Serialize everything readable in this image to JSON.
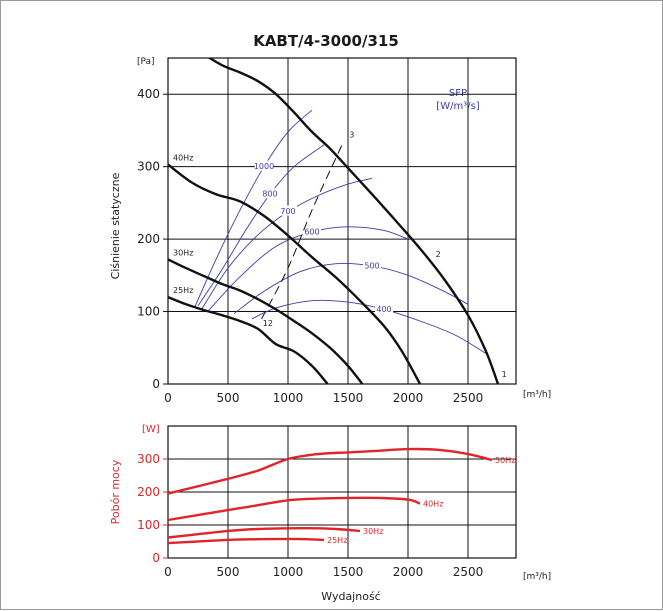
{
  "chart_data": [
    {
      "type": "line",
      "title": "KABT/4-3000/315",
      "ylabel": "Ciśnienie statyczne",
      "yunit": "[Pa]",
      "xunit": "[m³/h]",
      "xlim": [
        0,
        2900
      ],
      "ylim": [
        0,
        450
      ],
      "xticks": [
        0,
        500,
        1000,
        1500,
        2000,
        2500
      ],
      "yticks": [
        0,
        100,
        200,
        300,
        400
      ],
      "grid": true,
      "sfp_label_1": "SFP",
      "sfp_label_2": "[W/m³/s]",
      "fan_curves": [
        {
          "name": "50Hz",
          "x": [
            0,
            150,
            300,
            450,
            600,
            750,
            900,
            1050,
            1200,
            1350,
            1500,
            1700,
            1900,
            2100,
            2300,
            2500,
            2650,
            2750
          ],
          "y": [
            450,
            470,
            455,
            440,
            430,
            418,
            400,
            375,
            348,
            325,
            298,
            262,
            225,
            187,
            145,
            95,
            45,
            0
          ]
        },
        {
          "name": "40Hz",
          "x": [
            0,
            200,
            400,
            600,
            800,
            1000,
            1200,
            1400,
            1600,
            1800,
            1950,
            2100
          ],
          "y": [
            303,
            278,
            262,
            252,
            232,
            205,
            175,
            147,
            115,
            80,
            45,
            0
          ]
        },
        {
          "name": "30Hz",
          "x": [
            0,
            150,
            300,
            450,
            600,
            750,
            900,
            1050,
            1200,
            1350,
            1500,
            1620
          ],
          "y": [
            172,
            160,
            149,
            138,
            129,
            117,
            103,
            87,
            70,
            50,
            25,
            0
          ]
        },
        {
          "name": "25Hz",
          "x": [
            0,
            150,
            300,
            450,
            600,
            750,
            900,
            1050,
            1200,
            1330
          ],
          "y": [
            120,
            110,
            102,
            95,
            87,
            76,
            55,
            45,
            25,
            0
          ]
        }
      ],
      "sfp_curves": [
        {
          "name": "1000",
          "x": [
            220,
            400,
            600,
            800,
            1000,
            1200
          ],
          "y": [
            105,
            172,
            240,
            300,
            348,
            378
          ]
        },
        {
          "name": "800",
          "x": [
            250,
            450,
            650,
            850,
            1050,
            1300
          ],
          "y": [
            108,
            158,
            213,
            262,
            300,
            330
          ]
        },
        {
          "name": "700",
          "x": [
            280,
            500,
            750,
            1000,
            1250,
            1500,
            1700
          ],
          "y": [
            103,
            160,
            206,
            238,
            260,
            276,
            284
          ]
        },
        {
          "name": "600",
          "x": [
            330,
            600,
            900,
            1200,
            1500,
            1800,
            2000
          ],
          "y": [
            100,
            148,
            190,
            210,
            217,
            212,
            200
          ]
        },
        {
          "name": "500",
          "x": [
            550,
            800,
            1100,
            1400,
            1700,
            2000,
            2300,
            2500
          ],
          "y": [
            97,
            128,
            155,
            166,
            163,
            150,
            128,
            110
          ]
        },
        {
          "name": "400",
          "x": [
            700,
            900,
            1200,
            1500,
            1800,
            2100,
            2400,
            2650
          ],
          "y": [
            90,
            105,
            115,
            113,
            103,
            87,
            67,
            42
          ]
        }
      ],
      "point_labels": [
        {
          "label": "3",
          "x": 1510,
          "y": 340
        },
        {
          "label": "2",
          "x": 2230,
          "y": 175
        },
        {
          "label": "12",
          "x": 790,
          "y": 80
        },
        {
          "label": "1",
          "x": 2780,
          "y": 10
        }
      ],
      "dashed_line": {
        "x": [
          780,
          1000,
          1200,
          1450
        ],
        "y": [
          90,
          160,
          240,
          330
        ]
      }
    },
    {
      "type": "line",
      "ylabel": "Pobór mocy",
      "xlabel": "Wydajność",
      "yunit": "[W]",
      "xunit": "[m³/h]",
      "xlim": [
        0,
        2900
      ],
      "ylim": [
        0,
        400
      ],
      "xticks": [
        0,
        500,
        1000,
        1500,
        2000,
        2500
      ],
      "yticks": [
        0,
        100,
        200,
        300
      ],
      "grid": true,
      "series": [
        {
          "name": "50Hz",
          "x": [
            0,
            500,
            750,
            1000,
            1250,
            1500,
            1750,
            2000,
            2250,
            2500,
            2700
          ],
          "y": [
            195,
            240,
            265,
            300,
            315,
            320,
            325,
            330,
            328,
            315,
            297
          ]
        },
        {
          "name": "40Hz",
          "x": [
            0,
            500,
            750,
            1000,
            1250,
            1500,
            1750,
            2000,
            2100
          ],
          "y": [
            115,
            145,
            160,
            175,
            180,
            182,
            182,
            177,
            165
          ]
        },
        {
          "name": "30Hz",
          "x": [
            0,
            250,
            500,
            750,
            1000,
            1250,
            1400,
            1600
          ],
          "y": [
            62,
            72,
            82,
            88,
            90,
            90,
            88,
            82
          ]
        },
        {
          "name": "25Hz",
          "x": [
            0,
            250,
            500,
            750,
            1000,
            1150,
            1300
          ],
          "y": [
            45,
            50,
            55,
            57,
            58,
            57,
            55
          ]
        }
      ]
    }
  ],
  "colors": {
    "fan": "#111111",
    "sfp": "#3c3caa",
    "power": "#e0242a",
    "grid": "#111111"
  }
}
